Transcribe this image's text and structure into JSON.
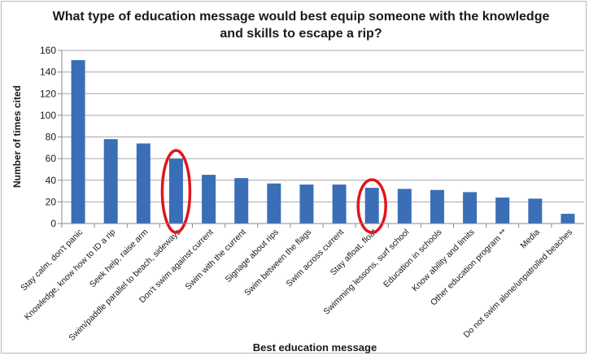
{
  "chart_data": {
    "type": "bar",
    "title": "What type of education message would best equip someone with the knowledge and skills to escape a rip?",
    "xlabel": "Best education message",
    "ylabel": "Number of times cited",
    "ylim": [
      0,
      160
    ],
    "yticks": [
      0,
      20,
      40,
      60,
      80,
      100,
      120,
      140,
      160
    ],
    "grid": true,
    "bar_color": "#3a6fb8",
    "highlight_color": "#e3141c",
    "highlighted_categories": [
      "Swim/paddle parallel to beach, sideways",
      "Stay afloat, float"
    ],
    "categories": [
      "Stay calm, don't panic",
      "Knowledge, know how to ID a rip",
      "Seek help, raise arm",
      "Swim/paddle parallel to beach, sideways",
      "Don't swim against current",
      "Swim with the current",
      "Signage about rips",
      "Swim between the flags",
      "Swim across current",
      "Stay afloat, float",
      "Swimming lessons, surf school",
      "Education in schools",
      "Know ability and limits",
      "Other education program **",
      "Media",
      "Do not swim alone/unpatrolled beaches"
    ],
    "values": [
      151,
      78,
      74,
      60,
      45,
      42,
      37,
      36,
      36,
      33,
      32,
      31,
      29,
      24,
      23,
      9
    ]
  }
}
